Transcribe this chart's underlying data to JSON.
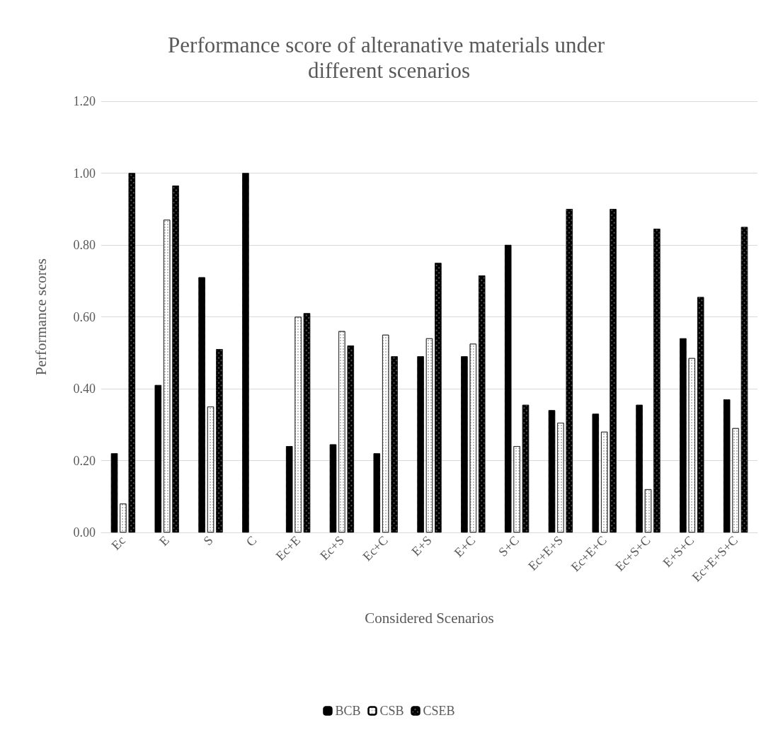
{
  "chart_data": {
    "type": "bar",
    "title": "Performance score of alteranative materials under different scenarios",
    "xlabel": "Considered Scenarios",
    "ylabel": "Performance scores",
    "categories": [
      "Ec",
      "E",
      "S",
      "C",
      "Ec+E",
      "Ec+S",
      "Ec+C",
      "E+S",
      "E+C",
      "S+C",
      "Ec+E+S",
      "Ec+E+C",
      "Ec+S+C",
      "E+S+C",
      "Ec+E+S+C"
    ],
    "series": [
      {
        "name": "BCB",
        "color": "#000000",
        "values": [
          0.22,
          0.41,
          0.71,
          1.0,
          0.24,
          0.245,
          0.22,
          0.49,
          0.49,
          0.8,
          0.34,
          0.33,
          0.355,
          0.54,
          0.37
        ]
      },
      {
        "name": "CSB",
        "color": "#ffffff",
        "values": [
          0.08,
          0.87,
          0.35,
          null,
          0.6,
          0.56,
          0.55,
          0.54,
          0.525,
          0.24,
          0.305,
          0.28,
          0.12,
          0.485,
          0.29
        ]
      },
      {
        "name": "CSEB",
        "color": "#000000",
        "values": [
          1.0,
          0.965,
          0.51,
          null,
          0.61,
          0.52,
          0.49,
          0.75,
          0.715,
          0.355,
          0.9,
          0.9,
          0.845,
          0.655,
          0.85
        ]
      }
    ],
    "ylim": [
      0,
      1.2
    ],
    "yticks": [
      {
        "value": 0,
        "label": "0.00"
      },
      {
        "value": 0.2,
        "label": "0.20"
      },
      {
        "value": 0.4,
        "label": "0.40"
      },
      {
        "value": 0.6,
        "label": "0.60"
      },
      {
        "value": 0.8,
        "label": "0.80"
      },
      {
        "value": 1.0,
        "label": "1.00"
      },
      {
        "value": 1.2,
        "label": "1.20"
      }
    ],
    "grid": "y",
    "legend": "bottom"
  }
}
